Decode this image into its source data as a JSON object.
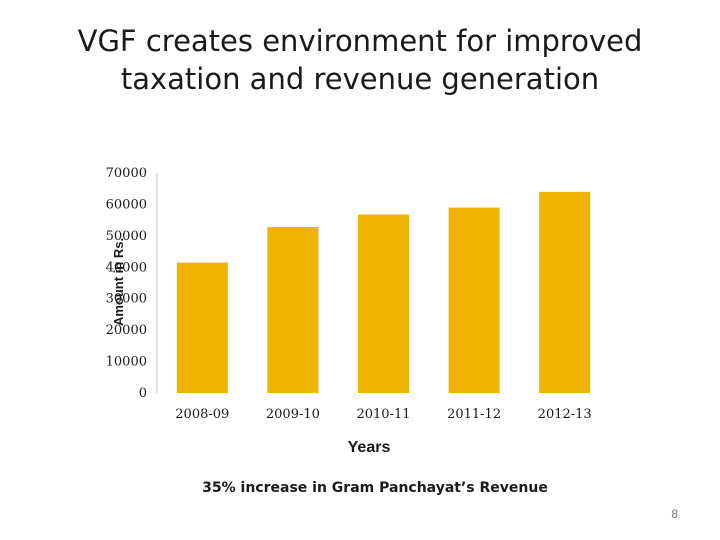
{
  "slide": {
    "title": "VGF creates environment for improved taxation and revenue generation",
    "caption": "35% increase in Gram Panchayat’s Revenue",
    "page_number": "8"
  },
  "colors": {
    "bar": "#f0b400",
    "axis": "#bfbfbf",
    "text": "#1a1a1a"
  },
  "chart_data": {
    "type": "bar",
    "title": "",
    "xlabel": "Years",
    "ylabel": "Amount in Rs.",
    "categories": [
      "2008-09",
      "2009-10",
      "2010-11",
      "2011-12",
      "2012-13"
    ],
    "values": [
      41500,
      52800,
      56800,
      59000,
      64000
    ],
    "ylim": [
      0,
      70000
    ],
    "yticks": [
      "0",
      "10000",
      "20000",
      "30000",
      "40000",
      "50000",
      "60000",
      "70000"
    ],
    "grid": false,
    "legend": "none"
  }
}
